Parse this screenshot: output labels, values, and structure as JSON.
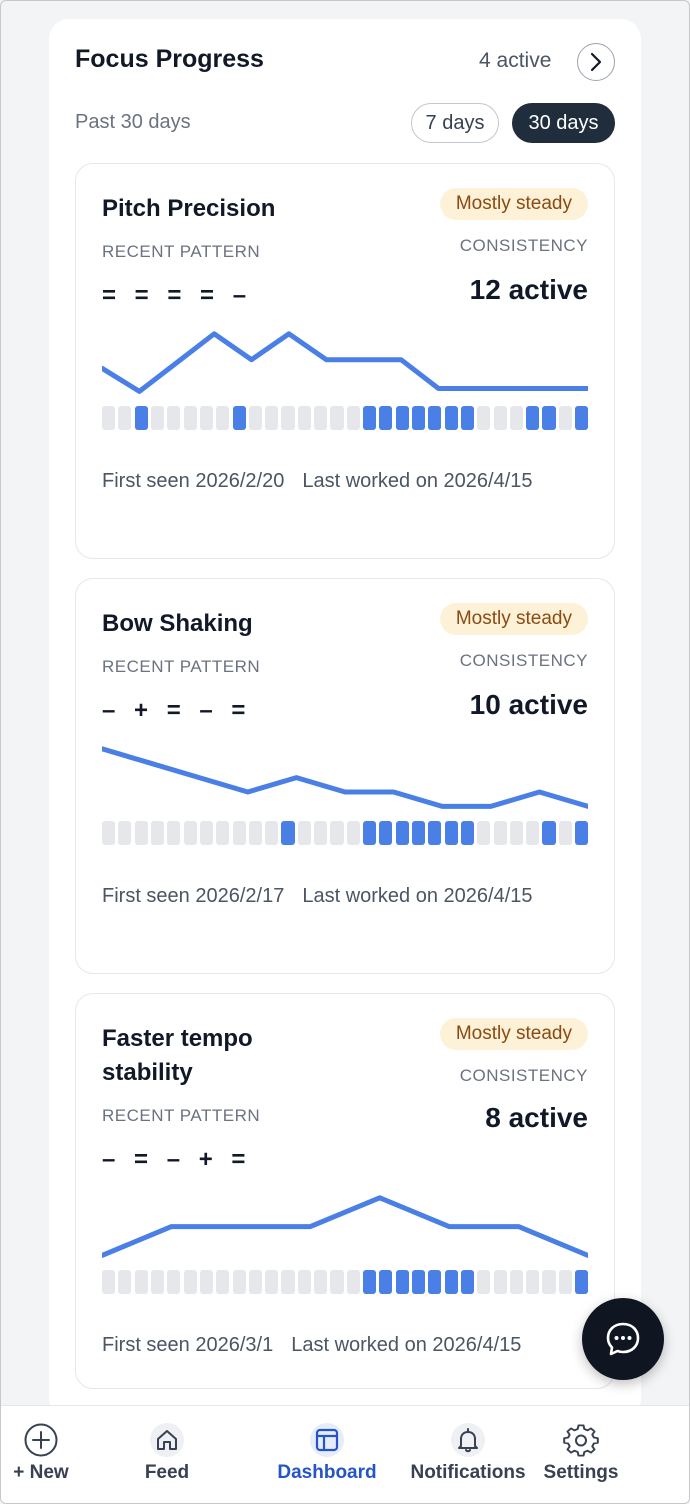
{
  "header": {
    "title": "Focus Progress",
    "active_count": "4 active",
    "subtitle": "Past 30 days",
    "range_options": [
      "7 days",
      "30 days"
    ],
    "selected_range": "30 days"
  },
  "labels": {
    "recent_pattern": "RECENT PATTERN",
    "consistency": "CONSISTENCY"
  },
  "colors": {
    "accent": "#4a7fe6",
    "badge_bg": "#fdf2d8",
    "badge_text": "#8a4a12",
    "dark": "#1f2d3d"
  },
  "cards": [
    {
      "title": "Pitch Precision",
      "status": "Mostly steady",
      "pattern": "= = = = –",
      "active": "12 active",
      "first_seen": "First seen 2026/2/20",
      "last_worked": "Last worked on 2026/4/15",
      "trend": [
        2.1,
        1.3,
        2.3,
        3.3,
        2.4,
        3.3,
        2.4,
        2.4,
        2.4,
        1.4,
        1.4,
        1.4,
        1.4,
        1.4
      ],
      "activity": [
        0,
        0,
        1,
        0,
        0,
        0,
        0,
        0,
        1,
        0,
        0,
        0,
        0,
        0,
        0,
        0,
        1,
        1,
        1,
        1,
        1,
        1,
        1,
        0,
        0,
        0,
        1,
        1,
        0,
        1
      ]
    },
    {
      "title": "Bow Shaking",
      "status": "Mostly steady",
      "pattern": "– + = – =",
      "active": "10 active",
      "first_seen": "First seen 2026/2/17",
      "last_worked": "Last worked on 2026/4/15",
      "trend": [
        3.3,
        2.8,
        2.3,
        1.8,
        2.3,
        1.8,
        1.8,
        1.3,
        1.3,
        1.8,
        1.3
      ],
      "activity": [
        0,
        0,
        0,
        0,
        0,
        0,
        0,
        0,
        0,
        0,
        0,
        1,
        0,
        0,
        0,
        0,
        1,
        1,
        1,
        1,
        1,
        1,
        1,
        0,
        0,
        0,
        0,
        1,
        0,
        1
      ]
    },
    {
      "title": "Faster tempo stability",
      "status": "Mostly steady",
      "pattern": "– = – + =",
      "active": "8 active",
      "first_seen": "First seen 2026/3/1",
      "last_worked": "Last worked on 2026/4/15",
      "trend": [
        1.3,
        2.3,
        2.3,
        2.3,
        3.3,
        2.3,
        2.3,
        1.3
      ],
      "activity": [
        0,
        0,
        0,
        0,
        0,
        0,
        0,
        0,
        0,
        0,
        0,
        0,
        0,
        0,
        0,
        0,
        1,
        1,
        1,
        1,
        1,
        1,
        1,
        0,
        0,
        0,
        0,
        0,
        0,
        1
      ]
    }
  ],
  "chat_button": {
    "icon": "chat-bubble-icon"
  },
  "tabbar": [
    {
      "label": "+ New",
      "icon": "plus-circle-icon"
    },
    {
      "label": "Feed",
      "icon": "home-icon"
    },
    {
      "label": "Dashboard",
      "icon": "dashboard-icon",
      "active": true
    },
    {
      "label": "Notifications",
      "icon": "bell-icon"
    },
    {
      "label": "Settings",
      "icon": "gear-icon"
    }
  ]
}
